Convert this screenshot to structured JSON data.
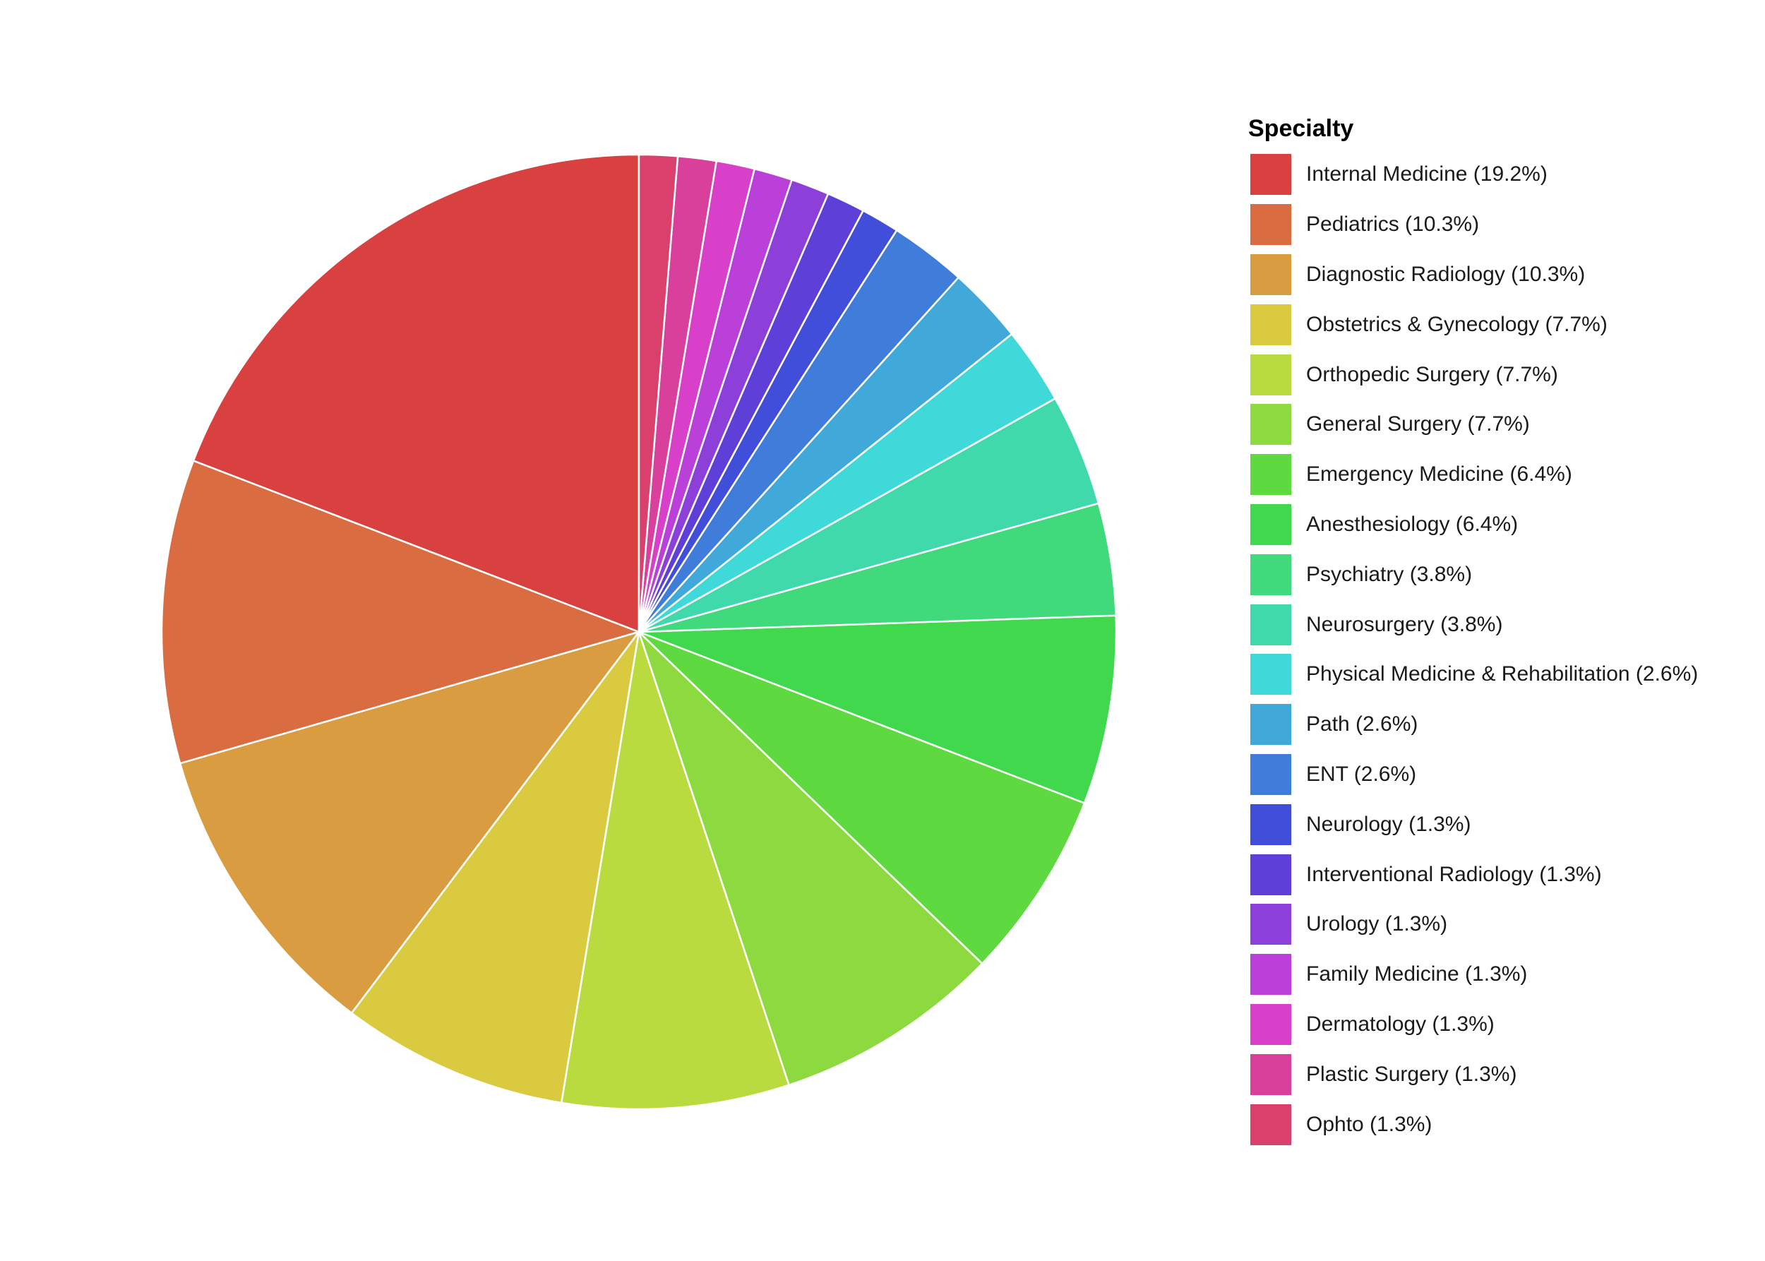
{
  "chart_data": {
    "type": "pie",
    "legend_title": "Specialty",
    "legend_position": "right",
    "slices": [
      {
        "name": "Internal Medicine",
        "value": 19.2,
        "label": "Internal Medicine (19.2%)",
        "color": "#D94040"
      },
      {
        "name": "Pediatrics",
        "value": 10.3,
        "label": "Pediatrics (10.3%)",
        "color": "#D96C40"
      },
      {
        "name": "Diagnostic Radiology",
        "value": 10.3,
        "label": "Diagnostic Radiology (10.3%)",
        "color": "#D99C40"
      },
      {
        "name": "Obstetrics & Gynecology",
        "value": 7.7,
        "label": "Obstetrics & Gynecology (7.7%)",
        "color": "#D9CA40"
      },
      {
        "name": "Orthopedic Surgery",
        "value": 7.7,
        "label": "Orthopedic Surgery (7.7%)",
        "color": "#BADB40"
      },
      {
        "name": "General Surgery",
        "value": 7.7,
        "label": "General Surgery (7.7%)",
        "color": "#8CD940"
      },
      {
        "name": "Emergency Medicine",
        "value": 6.4,
        "label": "Emergency Medicine (6.4%)",
        "color": "#5ED940"
      },
      {
        "name": "Anesthesiology",
        "value": 6.4,
        "label": "Anesthesiology (6.4%)",
        "color": "#40D94E"
      },
      {
        "name": "Psychiatry",
        "value": 3.8,
        "label": "Psychiatry (3.8%)",
        "color": "#40D97C"
      },
      {
        "name": "Neurosurgery",
        "value": 3.8,
        "label": "Neurosurgery (3.8%)",
        "color": "#40D9AC"
      },
      {
        "name": "Physical Medicine & Rehabilitation",
        "value": 2.6,
        "label": "Physical Medicine & Rehabilitation (2.6%)",
        "color": "#40D9D9"
      },
      {
        "name": "Path",
        "value": 2.6,
        "label": "Path (2.6%)",
        "color": "#40A9D9"
      },
      {
        "name": "ENT",
        "value": 2.6,
        "label": "ENT (2.6%)",
        "color": "#407CD9"
      },
      {
        "name": "Neurology",
        "value": 1.3,
        "label": "Neurology (1.3%)",
        "color": "#404ED9"
      },
      {
        "name": "Interventional Radiology",
        "value": 1.3,
        "label": "Interventional Radiology (1.3%)",
        "color": "#5E40D9"
      },
      {
        "name": "Urology",
        "value": 1.3,
        "label": "Urology (1.3%)",
        "color": "#8C40D9"
      },
      {
        "name": "Family Medicine",
        "value": 1.3,
        "label": "Family Medicine (1.3%)",
        "color": "#BA40D9"
      },
      {
        "name": "Dermatology",
        "value": 1.3,
        "label": "Dermatology (1.3%)",
        "color": "#D940CA"
      },
      {
        "name": "Plastic Surgery",
        "value": 1.3,
        "label": "Plastic Surgery (1.3%)",
        "color": "#D9409C"
      },
      {
        "name": "Ophto",
        "value": 1.3,
        "label": "Ophto (1.3%)",
        "color": "#D9406C"
      }
    ]
  }
}
